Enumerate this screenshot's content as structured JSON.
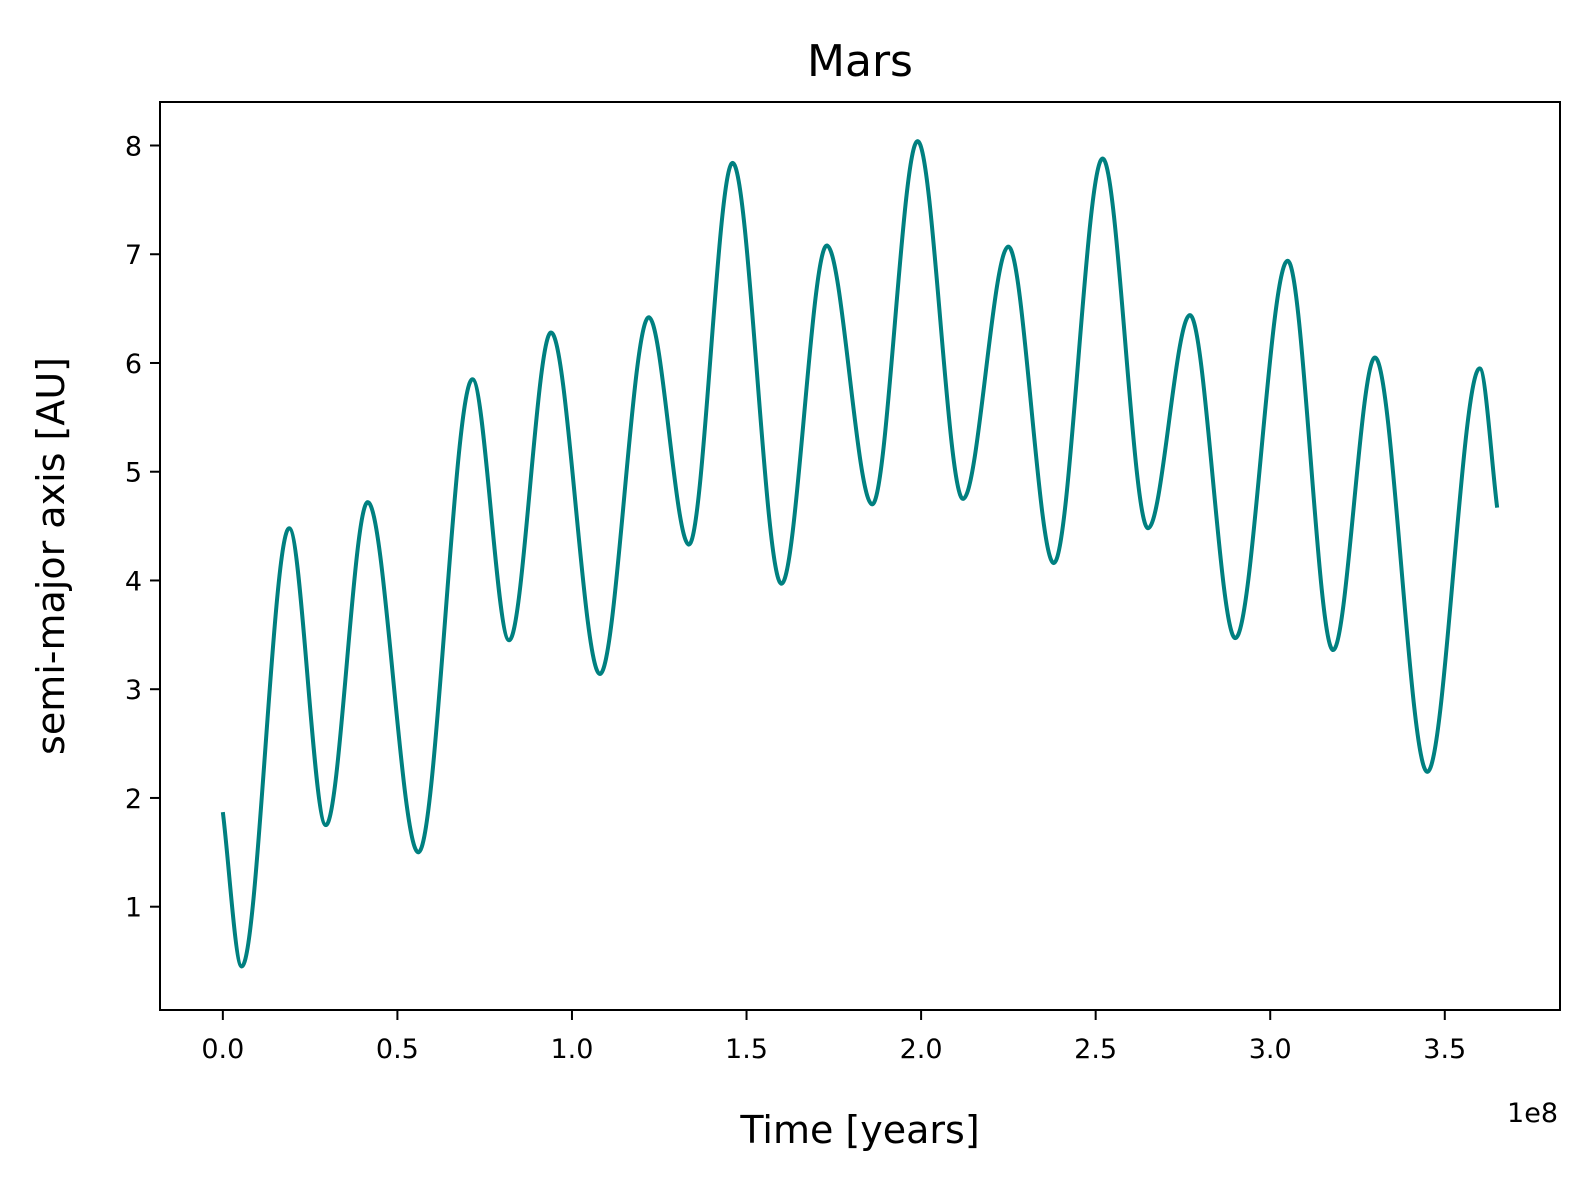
{
  "chart_data": {
    "type": "line",
    "title": "Mars",
    "xlabel": "Time [years]",
    "ylabel": "semi-major axis [AU]",
    "x_offset_label": "1e8",
    "xlim": [
      -0.18,
      3.83
    ],
    "ylim": [
      0.05,
      8.4
    ],
    "xticks": [
      0.0,
      0.5,
      1.0,
      1.5,
      2.0,
      2.5,
      3.0,
      3.5
    ],
    "xtick_labels": [
      "0.0",
      "0.5",
      "1.0",
      "1.5",
      "2.0",
      "2.5",
      "3.0",
      "3.5"
    ],
    "yticks": [
      1,
      2,
      3,
      4,
      5,
      6,
      7,
      8
    ],
    "ytick_labels": [
      "1",
      "2",
      "3",
      "4",
      "5",
      "6",
      "7",
      "8"
    ],
    "grid": false,
    "legend": "none",
    "series": [
      {
        "color": "#008080",
        "points": [
          [
            0.0,
            1.87
          ],
          [
            0.054,
            0.45
          ],
          [
            0.19,
            4.48
          ],
          [
            0.295,
            1.75
          ],
          [
            0.415,
            4.72
          ],
          [
            0.56,
            1.5
          ],
          [
            0.715,
            5.85
          ],
          [
            0.82,
            3.45
          ],
          [
            0.94,
            6.28
          ],
          [
            1.08,
            3.14
          ],
          [
            1.22,
            6.42
          ],
          [
            1.335,
            4.33
          ],
          [
            1.46,
            7.84
          ],
          [
            1.6,
            3.97
          ],
          [
            1.73,
            7.08
          ],
          [
            1.86,
            4.7
          ],
          [
            1.99,
            8.04
          ],
          [
            2.12,
            4.75
          ],
          [
            2.25,
            7.07
          ],
          [
            2.38,
            4.16
          ],
          [
            2.52,
            7.88
          ],
          [
            2.65,
            4.48
          ],
          [
            2.77,
            6.44
          ],
          [
            2.9,
            3.47
          ],
          [
            3.05,
            6.94
          ],
          [
            3.18,
            3.36
          ],
          [
            3.3,
            6.05
          ],
          [
            3.45,
            2.24
          ],
          [
            3.6,
            5.95
          ],
          [
            3.65,
            4.67
          ]
        ]
      }
    ]
  }
}
